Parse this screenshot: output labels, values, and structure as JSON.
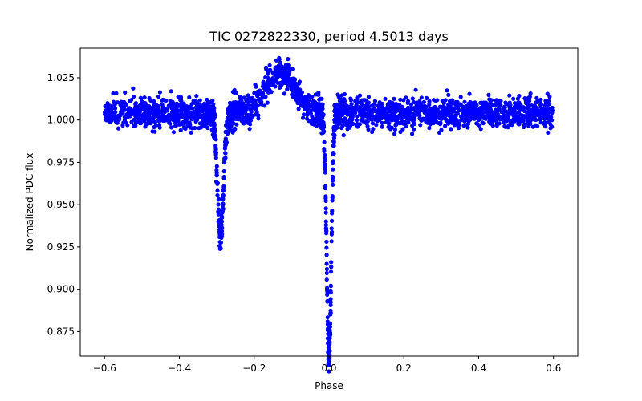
{
  "chart_data": {
    "type": "scatter",
    "title": "TIC 0272822330, period 4.5013 days",
    "xlabel": "Phase",
    "ylabel": "Normalized PDC flux",
    "xlim": [
      -0.665,
      0.665
    ],
    "ylim": [
      0.8605,
      1.0425
    ],
    "xticks": [
      -0.6,
      -0.4,
      -0.2,
      0.0,
      0.2,
      0.4,
      0.6
    ],
    "xtick_labels": [
      "−0.6",
      "−0.4",
      "−0.2",
      "0.0",
      "0.2",
      "0.4",
      "0.6"
    ],
    "yticks": [
      0.875,
      0.9,
      0.925,
      0.95,
      0.975,
      1.0,
      1.025
    ],
    "ytick_labels": [
      "0.875",
      "0.900",
      "0.925",
      "0.950",
      "0.975",
      "1.000",
      "1.025"
    ],
    "grid": false,
    "point_color": "#0000ff",
    "series": [
      {
        "name": "PDC flux",
        "phase_range": [
          -0.6,
          0.6
        ],
        "baseline": 1.004,
        "scatter": 0.0045,
        "primary_eclipse": {
          "phase": 0.0,
          "min_flux": 0.865
        },
        "secondary_eclipse": {
          "phase": -0.29,
          "min_flux": 0.935
        },
        "brightening": {
          "phase": -0.13,
          "peak_flux": 1.028
        },
        "x": [
          -0.6,
          -0.5,
          -0.4,
          -0.32,
          -0.3,
          -0.29,
          -0.28,
          -0.26,
          -0.2,
          -0.13,
          -0.06,
          -0.02,
          -0.01,
          0.0,
          0.01,
          0.02,
          0.03,
          0.1,
          0.2,
          0.4,
          0.6
        ],
        "y": [
          1.004,
          1.003,
          1.005,
          1.003,
          0.975,
          0.936,
          0.95,
          1.0,
          1.012,
          1.025,
          1.012,
          1.0,
          0.95,
          0.866,
          0.95,
          0.995,
          1.012,
          1.005,
          1.004,
          1.003,
          1.005
        ]
      }
    ]
  }
}
